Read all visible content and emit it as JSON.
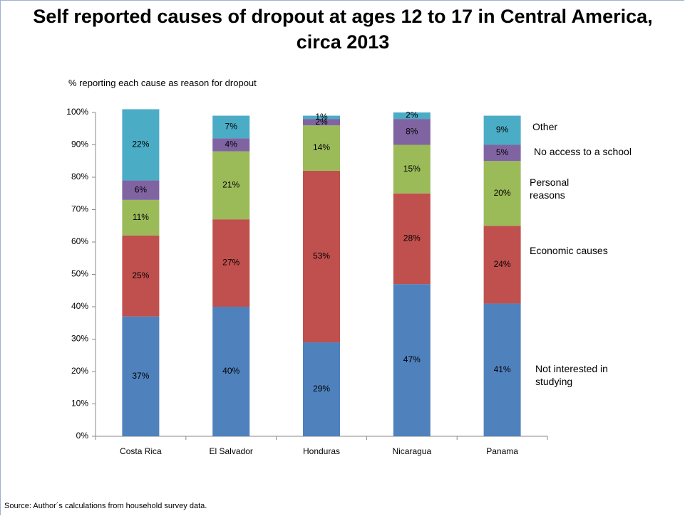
{
  "chart_data": {
    "type": "stacked_bar",
    "title": "Self reported causes of dropout at ages 12 to 17 in Central America, circa 2013",
    "y_axis_label": "% reporting each cause as reason for dropout",
    "source": "Source: Author´s calculations from household survey data.",
    "categories": [
      "Costa Rica",
      "El Salvador",
      "Honduras",
      "Nicaragua",
      "Panama"
    ],
    "series": [
      {
        "name": "Not interested in studying",
        "color": "#4f81bd",
        "values": [
          37,
          40,
          29,
          47,
          41
        ],
        "value_labels": [
          "37%",
          "40%",
          "29%",
          "47%",
          "41%"
        ]
      },
      {
        "name": "Economic causes",
        "color": "#c0504d",
        "values": [
          25,
          27,
          53,
          28,
          24
        ],
        "value_labels": [
          "25%",
          "27%",
          "53%",
          "28%",
          "24%"
        ]
      },
      {
        "name": "Personal reasons",
        "color": "#9bbb59",
        "values": [
          11,
          21,
          14,
          15,
          20
        ],
        "value_labels": [
          "11%",
          "21%",
          "14%",
          "15%",
          "20%"
        ]
      },
      {
        "name": "No access to a school",
        "color": "#8064a2",
        "values": [
          6,
          4,
          2,
          8,
          5
        ],
        "value_labels": [
          "6%",
          "4%",
          "2%",
          "8%",
          "5%"
        ]
      },
      {
        "name": "Other",
        "color": "#4bacc6",
        "values": [
          22,
          7,
          1,
          2,
          9
        ],
        "value_labels": [
          "22%",
          "7%",
          "1%",
          "2%",
          "9%"
        ]
      }
    ],
    "ylim": [
      0,
      100
    ],
    "yticks": [
      {
        "value": 0,
        "label": "0%"
      },
      {
        "value": 10,
        "label": "10%"
      },
      {
        "value": 20,
        "label": "20%"
      },
      {
        "value": 30,
        "label": "30%"
      },
      {
        "value": 40,
        "label": "40%"
      },
      {
        "value": 50,
        "label": "50%"
      },
      {
        "value": 60,
        "label": "60%"
      },
      {
        "value": 70,
        "label": "70%"
      },
      {
        "value": 80,
        "label": "80%"
      },
      {
        "value": 90,
        "label": "90%"
      },
      {
        "value": 100,
        "label": "100%"
      }
    ],
    "grid": false
  }
}
